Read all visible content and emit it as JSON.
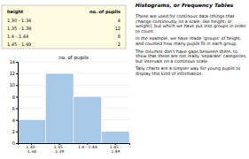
{
  "chart_data": {
    "type": "bar",
    "title": "Histograms, or Frequency Tables",
    "subtitle": "no. of pupils",
    "categories": [
      "1.30 -\n1.34",
      "1.35 -\n1.39",
      "1.4 - 1.44",
      "1.45 -\n1.49"
    ],
    "values": [
      4,
      12,
      8,
      2
    ],
    "color": "#a8c8e8",
    "ylim": [
      0,
      14
    ],
    "yticks": [
      0,
      2,
      4,
      6,
      8,
      10,
      12,
      14
    ],
    "grid": true,
    "table": {
      "headers": [
        "height",
        "no. of pupils"
      ],
      "rows": [
        [
          "1.30 - 1.34",
          "4"
        ],
        [
          "1.35 - 1.39",
          "12"
        ],
        [
          "1.4 - 1.44",
          "8"
        ],
        [
          "1.45 - 1.49",
          "2"
        ]
      ]
    },
    "annotations": [
      "These are used for continous data (things that change continously on a scale, like height, or weight), but which we have put into groups in order to count.",
      "In the example, we have made 'groups' of height, and counted how many pupils fit in each group.",
      "The columns don't have gaps between them, to show that these are not really 'separate' categories, but intervals on a continous scale.",
      "Tally charts are a simpler way for young pupils to display this kind of information."
    ]
  }
}
